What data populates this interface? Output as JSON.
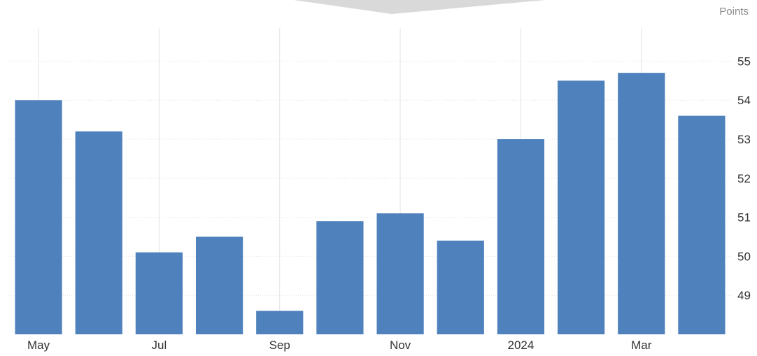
{
  "unit_label": "Points",
  "colors": {
    "bar": "#4f81bd",
    "grid": "#e3e3e3",
    "tick_text": "#333333",
    "axis_text": "#555555",
    "top_shape": "#d9d9d9"
  },
  "chart_data": {
    "type": "bar",
    "title": "",
    "xlabel": "",
    "ylabel": "Points",
    "categories": [
      "May",
      "Jun",
      "Jul",
      "Aug",
      "Sep",
      "Oct",
      "Nov",
      "Dec",
      "2024",
      "Feb",
      "Mar",
      "Apr"
    ],
    "x_tick_labels": [
      "May",
      "",
      "Jul",
      "",
      "Sep",
      "",
      "Nov",
      "",
      "2024",
      "",
      "Mar",
      ""
    ],
    "values": [
      54.0,
      53.2,
      50.1,
      50.5,
      48.6,
      50.9,
      51.1,
      50.4,
      53.0,
      54.5,
      54.7,
      53.6
    ],
    "y_ticks": [
      49,
      50,
      51,
      52,
      53,
      54,
      55
    ],
    "ylim": [
      48.0,
      55.85
    ],
    "y_axis_position": "right",
    "grid": true,
    "legend": "none"
  }
}
